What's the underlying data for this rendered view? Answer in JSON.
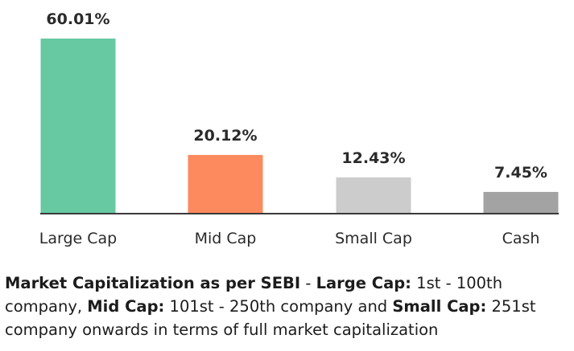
{
  "chart_data": {
    "type": "bar",
    "categories": [
      "Large Cap",
      "Mid Cap",
      "Small Cap",
      "Cash"
    ],
    "values": [
      60.01,
      20.12,
      12.43,
      7.45
    ],
    "value_labels": [
      "60.01%",
      "20.12%",
      "12.43%",
      "7.45%"
    ],
    "colors": [
      "#66c9a2",
      "#fd8a5e",
      "#cccccc",
      "#a3a3a3"
    ],
    "axis_color": "#3a3a3a",
    "ylim": [
      0,
      60.01
    ],
    "grid": false,
    "legend": "none"
  },
  "footnote": {
    "title": "Market Capitalization as per SEBI",
    "sep": " - ",
    "large_label": "Large Cap:",
    "large_text": " 1st - 100th company, ",
    "mid_label": "Mid Cap:",
    "mid_text": " 101st - 250th company and ",
    "small_label": "Small Cap:",
    "small_text": " 251st company onwards in terms of full market capitalization"
  }
}
